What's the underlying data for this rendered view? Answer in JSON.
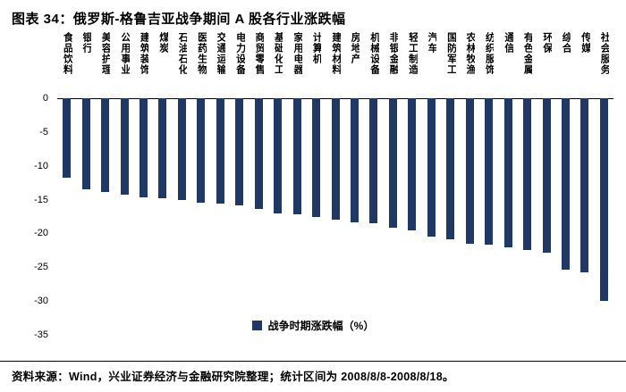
{
  "header": {
    "title": "图表 34：俄罗斯-格鲁吉亚战争期间 A 股各行业涨跌幅"
  },
  "footer": {
    "source": "资料来源：Wind，兴业证券经济与金融研究院整理；统计区间为 2008/8/8-2008/8/18。"
  },
  "chart_data": {
    "type": "bar",
    "title": "图表 34：俄罗斯-格鲁吉亚战争期间 A 股各行业涨跌幅",
    "categories": [
      "食品饮料",
      "银行",
      "美容护理",
      "公用事业",
      "建筑装饰",
      "煤炭",
      "石油石化",
      "医药生物",
      "交通运输",
      "电力设备",
      "商贸零售",
      "基础化工",
      "家用电器",
      "计算机",
      "建筑材料",
      "房地产",
      "机械设备",
      "非银金融",
      "轻工制造",
      "汽车",
      "国防军工",
      "农林牧渔",
      "纺织服饰",
      "通信",
      "有色金属",
      "环保",
      "综合",
      "传媒",
      "社会服务"
    ],
    "values": [
      -11.8,
      -13.5,
      -13.9,
      -14.3,
      -14.6,
      -14.8,
      -15.1,
      -15.4,
      -15.6,
      -15.9,
      -16.4,
      -17.0,
      -17.2,
      -17.5,
      -18.0,
      -18.3,
      -18.5,
      -19.1,
      -19.6,
      -20.5,
      -20.9,
      -21.5,
      -21.7,
      -22.0,
      -22.5,
      -22.9,
      -25.4,
      -25.8,
      -30.0
    ],
    "xlabel": "",
    "ylabel": "",
    "ylim": [
      -35,
      0
    ],
    "yticks": [
      0,
      -5,
      -10,
      -15,
      -20,
      -25,
      -30,
      -35
    ],
    "grid": false,
    "legend": [
      "战争时期涨跌幅（%）"
    ],
    "legend_position": "bottom",
    "bar_color": "#1F3864"
  }
}
